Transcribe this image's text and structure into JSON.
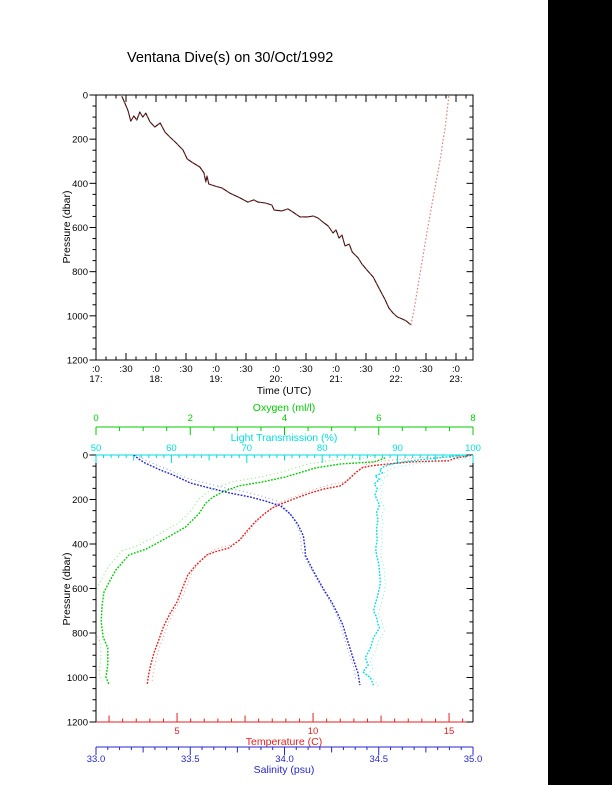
{
  "title": "Ventana Dive(s) on 30/Oct/1992",
  "colors": {
    "background": "#ffffff",
    "frame": "#000000",
    "right_bar": "#000000",
    "descent": "#2e1212",
    "descent_fleck": "#c03333",
    "ascent": "#d98585"
  },
  "chart_data": [
    {
      "id": "dive-depth-vs-time",
      "type": "line",
      "title": "Ventana Dive(s) on 30/Oct/1992",
      "xlabel": "Time (UTC)",
      "ylabel": "Pressure (dbar)",
      "xlim_hours_utc": [
        17.0,
        23.28
      ],
      "ylim": [
        0,
        1200
      ],
      "y_axis_inverted": true,
      "grid": false,
      "y_ticks": [
        "0",
        "200",
        "400",
        "600",
        "800",
        "1000",
        "1200"
      ],
      "x_ticks": [
        {
          "t": 17.0,
          "label": ":0",
          "hour": "17:"
        },
        {
          "t": 17.5,
          "label": ":30"
        },
        {
          "t": 18.0,
          "label": ":0",
          "hour": "18:"
        },
        {
          "t": 18.5,
          "label": ":30"
        },
        {
          "t": 19.0,
          "label": ":0",
          "hour": "19:"
        },
        {
          "t": 19.5,
          "label": ":30"
        },
        {
          "t": 20.0,
          "label": ":0",
          "hour": "20:"
        },
        {
          "t": 20.5,
          "label": ":30"
        },
        {
          "t": 21.0,
          "label": ":0",
          "hour": "21:"
        },
        {
          "t": 21.5,
          "label": ":30"
        },
        {
          "t": 22.0,
          "label": ":0",
          "hour": "22:"
        },
        {
          "t": 22.5,
          "label": ":30"
        },
        {
          "t": 23.0,
          "label": ":0",
          "hour": "23:"
        }
      ],
      "series": [
        {
          "name": "descent",
          "points": [
            [
              17.43,
              5
            ],
            [
              17.48,
              36
            ],
            [
              17.53,
              68
            ],
            [
              17.58,
              118
            ],
            [
              17.63,
              95
            ],
            [
              17.68,
              113
            ],
            [
              17.73,
              77
            ],
            [
              17.78,
              100
            ],
            [
              17.83,
              82
            ],
            [
              17.9,
              122
            ],
            [
              17.98,
              145
            ],
            [
              18.07,
              127
            ],
            [
              18.15,
              168
            ],
            [
              18.23,
              190
            ],
            [
              18.32,
              213
            ],
            [
              18.45,
              249
            ],
            [
              18.52,
              290
            ],
            [
              18.62,
              308
            ],
            [
              18.73,
              326
            ],
            [
              18.8,
              353
            ],
            [
              18.83,
              394
            ],
            [
              18.85,
              367
            ],
            [
              18.88,
              403
            ],
            [
              18.98,
              412
            ],
            [
              19.1,
              421
            ],
            [
              19.23,
              444
            ],
            [
              19.4,
              466
            ],
            [
              19.53,
              485
            ],
            [
              19.63,
              475
            ],
            [
              19.7,
              485
            ],
            [
              19.82,
              489
            ],
            [
              19.93,
              498
            ],
            [
              19.97,
              521
            ],
            [
              20.1,
              525
            ],
            [
              20.2,
              516
            ],
            [
              20.28,
              530
            ],
            [
              20.4,
              552
            ],
            [
              20.52,
              552
            ],
            [
              20.62,
              548
            ],
            [
              20.7,
              557
            ],
            [
              20.78,
              575
            ],
            [
              20.87,
              593
            ],
            [
              20.95,
              625
            ],
            [
              21.0,
              611
            ],
            [
              21.05,
              648
            ],
            [
              21.1,
              634
            ],
            [
              21.15,
              684
            ],
            [
              21.22,
              675
            ],
            [
              21.27,
              711
            ],
            [
              21.37,
              738
            ],
            [
              21.43,
              765
            ],
            [
              21.53,
              797
            ],
            [
              21.62,
              824
            ],
            [
              21.68,
              856
            ],
            [
              21.75,
              892
            ],
            [
              21.82,
              928
            ],
            [
              21.88,
              964
            ],
            [
              21.95,
              987
            ],
            [
              22.02,
              1005
            ],
            [
              22.1,
              1014
            ],
            [
              22.17,
              1023
            ],
            [
              22.25,
              1041
            ]
          ]
        },
        {
          "name": "ascent",
          "points": [
            [
              22.25,
              1041
            ],
            [
              22.3,
              973
            ],
            [
              22.35,
              892
            ],
            [
              22.4,
              810
            ],
            [
              22.45,
              729
            ],
            [
              22.5,
              647
            ],
            [
              22.55,
              570
            ],
            [
              22.6,
              493
            ],
            [
              22.65,
              421
            ],
            [
              22.7,
              348
            ],
            [
              22.75,
              271
            ],
            [
              22.78,
              212
            ],
            [
              22.82,
              149
            ],
            [
              22.85,
              77
            ],
            [
              22.88,
              5
            ]
          ]
        }
      ]
    },
    {
      "id": "ctd-profiles",
      "type": "line",
      "ylabel": "Pressure (dbar)",
      "ylim": [
        0,
        1200
      ],
      "y_axis_inverted": true,
      "grid": false,
      "y_ticks": [
        "0",
        "200",
        "400",
        "600",
        "800",
        "1000",
        "1200"
      ],
      "axes": {
        "oxygen": {
          "label": "Oxygen (ml/l)",
          "color": "#00cc00",
          "lim": [
            0,
            8
          ],
          "tick_values": [
            0,
            2,
            4,
            6,
            8
          ],
          "tick_labels": [
            "0",
            "2",
            "4",
            "6",
            "8"
          ]
        },
        "transmission": {
          "label": "Light Transmission (%)",
          "color": "#00dede",
          "lim": [
            50,
            100
          ],
          "tick_values": [
            50,
            60,
            70,
            80,
            90,
            100
          ],
          "tick_labels": [
            "50",
            "60",
            "70",
            "80",
            "90",
            "100"
          ]
        },
        "temperature": {
          "label": "Temperature (C)",
          "color": "#e62020",
          "lim": [
            2.02,
            15.88
          ],
          "tick_values": [
            5,
            10,
            15
          ],
          "tick_labels": [
            "5",
            "10",
            "15"
          ]
        },
        "salinity": {
          "label": "Salinity (psu)",
          "color": "#2626cc",
          "lim": [
            33,
            35
          ],
          "tick_values": [
            33,
            33.5,
            34,
            34.5,
            35
          ],
          "tick_labels": [
            "33.0",
            "33.5",
            "34.0",
            "34.5",
            "35.0"
          ]
        }
      },
      "series": [
        {
          "name": "oxygen",
          "axis": "oxygen",
          "echo_offset": [
            -7,
            -4
          ],
          "points": [
            [
              6.14,
              13
            ],
            [
              5.9,
              31
            ],
            [
              5.2,
              40
            ],
            [
              4.66,
              58
            ],
            [
              4.38,
              76
            ],
            [
              4.02,
              99
            ],
            [
              3.53,
              121
            ],
            [
              3.03,
              139
            ],
            [
              2.69,
              166
            ],
            [
              2.48,
              189
            ],
            [
              2.33,
              216
            ],
            [
              2.18,
              265
            ],
            [
              1.9,
              324
            ],
            [
              1.42,
              382
            ],
            [
              1.06,
              423
            ],
            [
              0.7,
              449
            ],
            [
              0.42,
              517
            ],
            [
              0.28,
              571
            ],
            [
              0.17,
              616
            ],
            [
              0.13,
              674
            ],
            [
              0.11,
              750
            ],
            [
              0.15,
              818
            ],
            [
              0.25,
              867
            ],
            [
              0.25,
              944
            ],
            [
              0.21,
              998
            ],
            [
              0.28,
              1034
            ]
          ]
        },
        {
          "name": "temperature",
          "axis": "temperature",
          "echo_offset": [
            5,
            -4
          ],
          "points": [
            [
              15.8,
              2
            ],
            [
              15.2,
              15
            ],
            [
              15.0,
              26
            ],
            [
              14.3,
              28
            ],
            [
              13.5,
              32
            ],
            [
              12.8,
              40
            ],
            [
              12.1,
              49
            ],
            [
              11.8,
              58
            ],
            [
              11.6,
              76
            ],
            [
              11.4,
              99
            ],
            [
              11.2,
              121
            ],
            [
              11.0,
              139
            ],
            [
              10.4,
              153
            ],
            [
              9.9,
              171
            ],
            [
              9.4,
              193
            ],
            [
              8.9,
              216
            ],
            [
              8.5,
              238
            ],
            [
              8.2,
              265
            ],
            [
              7.9,
              297
            ],
            [
              7.6,
              337
            ],
            [
              7.3,
              382
            ],
            [
              6.9,
              418
            ],
            [
              6.4,
              435
            ],
            [
              6.1,
              449
            ],
            [
              5.7,
              494
            ],
            [
              5.4,
              539
            ],
            [
              5.2,
              598
            ],
            [
              5.0,
              660
            ],
            [
              4.75,
              710
            ],
            [
              4.5,
              771
            ],
            [
              4.33,
              831
            ],
            [
              4.15,
              890
            ],
            [
              4.03,
              944
            ],
            [
              3.95,
              989
            ],
            [
              3.9,
              1034
            ]
          ]
        },
        {
          "name": "salinity",
          "axis": "salinity",
          "echo_offset": [
            -4,
            -5
          ],
          "points": [
            [
              33.2,
              0
            ],
            [
              33.23,
              20
            ],
            [
              33.26,
              36
            ],
            [
              33.34,
              67
            ],
            [
              33.41,
              90
            ],
            [
              33.5,
              126
            ],
            [
              33.6,
              148
            ],
            [
              33.71,
              171
            ],
            [
              33.82,
              189
            ],
            [
              33.9,
              207
            ],
            [
              33.98,
              229
            ],
            [
              34.03,
              265
            ],
            [
              34.07,
              310
            ],
            [
              34.1,
              364
            ],
            [
              34.11,
              427
            ],
            [
              34.11,
              449
            ],
            [
              34.15,
              517
            ],
            [
              34.18,
              562
            ],
            [
              34.21,
              607
            ],
            [
              34.25,
              660
            ],
            [
              34.28,
              710
            ],
            [
              34.31,
              764
            ],
            [
              34.33,
              822
            ],
            [
              34.35,
              876
            ],
            [
              34.37,
              930
            ],
            [
              34.39,
              980
            ],
            [
              34.4,
              1034
            ]
          ]
        },
        {
          "name": "transmission",
          "axis": "transmission",
          "echo_offset": [
            5,
            3
          ],
          "points": [
            [
              100,
              0
            ],
            [
              97.5,
              5
            ],
            [
              94.0,
              18
            ],
            [
              91.5,
              27
            ],
            [
              89.3,
              40
            ],
            [
              88.2,
              52
            ],
            [
              87.6,
              67
            ],
            [
              88.0,
              80
            ],
            [
              87.0,
              95
            ],
            [
              87.6,
              110
            ],
            [
              86.9,
              130
            ],
            [
              87.3,
              150
            ],
            [
              87.0,
              180
            ],
            [
              87.6,
              225
            ],
            [
              87.2,
              260
            ],
            [
              87.4,
              292
            ],
            [
              87.2,
              330
            ],
            [
              87.3,
              380
            ],
            [
              87.1,
              420
            ],
            [
              87.2,
              449
            ],
            [
              87.5,
              490
            ],
            [
              87.6,
              526
            ],
            [
              87.7,
              570
            ],
            [
              87.6,
              598
            ],
            [
              87.3,
              640
            ],
            [
              87.0,
              674
            ],
            [
              86.8,
              700
            ],
            [
              87.2,
              728
            ],
            [
              87.4,
              760
            ],
            [
              87.6,
              777
            ],
            [
              86.8,
              820
            ],
            [
              86.4,
              867
            ],
            [
              85.7,
              912
            ],
            [
              86.1,
              944
            ],
            [
              85.4,
              975
            ],
            [
              86.4,
              1002
            ],
            [
              86.8,
              1034
            ]
          ]
        }
      ]
    }
  ]
}
